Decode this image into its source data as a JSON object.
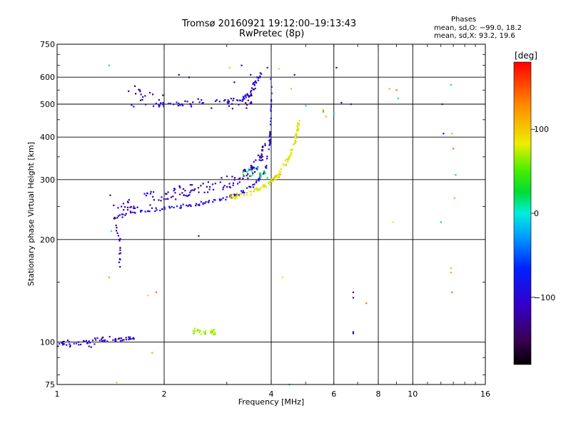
{
  "header": {
    "title": "Tromsø 20160921 19:12:00–19:13:43",
    "subtitle": "RwPretec (8p)"
  },
  "phases_box": {
    "heading": "Phases",
    "line_o": "mean, sd,O: −99.0, 18.2",
    "line_x": "mean, sd,X:  93.2, 19.6"
  },
  "chart_data": {
    "type": "scatter",
    "title": "Tromsø 20160921 19:12:00–19:13:43",
    "subtitle": "RwPretec (8p)",
    "xlabel": "Frequency [MHz]",
    "ylabel": "Stationary phase Virtual Height [km]",
    "xscale": "log",
    "yscale": "log",
    "xlim": [
      1,
      16
    ],
    "ylim": [
      75,
      750
    ],
    "x_ticks": [
      1,
      2,
      4,
      6,
      8,
      10,
      16
    ],
    "x_tick_labels": [
      "1",
      "2",
      "4",
      "6",
      "8",
      "10",
      "16"
    ],
    "x_grid": [
      2,
      4,
      6,
      8,
      10
    ],
    "y_ticks": [
      75,
      100,
      200,
      300,
      400,
      500,
      600,
      750
    ],
    "y_tick_labels": [
      "75",
      "100",
      "200",
      "300",
      "400",
      "500",
      "600",
      "750"
    ],
    "y_grid": [
      100,
      200,
      300,
      400,
      500,
      600
    ],
    "grid": true,
    "colorbar": {
      "label": "[deg]",
      "range": [
        -180,
        180
      ],
      "ticks": [
        100,
        0,
        -100
      ],
      "tick_labels": [
        "100",
        "0",
        "−100"
      ]
    },
    "series": [
      {
        "trace": [
          [
            1.0,
            96
          ],
          [
            1.03,
            99
          ],
          [
            1.06,
            100
          ],
          [
            1.1,
            97
          ],
          [
            1.15,
            99
          ],
          [
            1.2,
            101
          ],
          [
            1.25,
            98
          ],
          [
            1.3,
            103
          ],
          [
            1.35,
            101
          ],
          [
            1.4,
            102
          ]
        ],
        "jitter": [
          0.015,
          2
        ],
        "n": 45,
        "phase": -110
      },
      {
        "trace": [
          [
            1.43,
            101
          ],
          [
            1.55,
            102
          ],
          [
            1.65,
            103
          ]
        ],
        "jitter": [
          0.02,
          1
        ],
        "n": 25,
        "phase": -105
      },
      {
        "trace": [
          [
            1.45,
            232
          ],
          [
            1.6,
            240
          ],
          [
            1.8,
            244
          ],
          [
            2.0,
            246
          ],
          [
            2.3,
            252
          ],
          [
            2.6,
            256
          ],
          [
            3.0,
            265
          ],
          [
            3.3,
            275
          ],
          [
            3.6,
            290
          ],
          [
            3.85,
            320
          ],
          [
            3.95,
            380
          ],
          [
            4.0,
            450
          ],
          [
            4.0,
            600
          ]
        ],
        "jitter": [
          0.015,
          3
        ],
        "n": 130,
        "phase": -95
      },
      {
        "trace": [
          [
            1.45,
            240
          ],
          [
            1.7,
            260
          ],
          [
            2.0,
            270
          ],
          [
            2.4,
            280
          ],
          [
            2.8,
            290
          ],
          [
            3.2,
            300
          ],
          [
            3.5,
            320
          ],
          [
            3.7,
            340
          ],
          [
            3.85,
            380
          ]
        ],
        "jitter": [
          0.04,
          12
        ],
        "n": 150,
        "phase": -115
      },
      {
        "trace": [
          [
            1.6,
            500
          ],
          [
            2.0,
            498
          ],
          [
            2.5,
            505
          ],
          [
            3.0,
            512
          ],
          [
            3.3,
            520
          ],
          [
            3.5,
            535
          ],
          [
            3.6,
            580
          ],
          [
            3.8,
            620
          ]
        ],
        "jitter": [
          0.03,
          8
        ],
        "n": 80,
        "phase": -100
      },
      {
        "trace": [
          [
            1.6,
            560
          ],
          [
            1.8,
            520
          ],
          [
            3.0,
            490
          ],
          [
            3.4,
            495
          ],
          [
            3.6,
            540
          ]
        ],
        "jitter": [
          0.04,
          20
        ],
        "n": 40,
        "phase": -130
      },
      {
        "trace": [
          [
            1.45,
            230
          ],
          [
            1.5,
            200
          ],
          [
            1.5,
            170
          ]
        ],
        "jitter": [
          0.01,
          5
        ],
        "n": 18,
        "phase": -120
      },
      {
        "trace": [
          [
            3.0,
            265
          ],
          [
            3.5,
            275
          ],
          [
            3.9,
            290
          ],
          [
            4.2,
            310
          ],
          [
            4.5,
            350
          ],
          [
            4.7,
            400
          ],
          [
            4.8,
            450
          ]
        ],
        "jitter": [
          0.03,
          5
        ],
        "n": 120,
        "phase": 90
      },
      {
        "trace": [
          [
            2.4,
            108
          ],
          [
            2.6,
            106
          ],
          [
            2.8,
            107
          ]
        ],
        "jitter": [
          0.03,
          2
        ],
        "n": 35,
        "phase": 70
      },
      {
        "trace": [
          [
            3.3,
            310
          ],
          [
            3.7,
            320
          ],
          [
            3.9,
            305
          ]
        ],
        "jitter": [
          0.05,
          10
        ],
        "n": 20,
        "phase": 20
      }
    ],
    "scattered_points": [
      [
        1.4,
        650,
        10
      ],
      [
        1.41,
        270,
        -120
      ],
      [
        1.42,
        212,
        0
      ],
      [
        1.4,
        155,
        60
      ],
      [
        1.47,
        76,
        100
      ],
      [
        1.8,
        137,
        100
      ],
      [
        1.9,
        140,
        140
      ],
      [
        1.85,
        93,
        60
      ],
      [
        2.2,
        610,
        -120
      ],
      [
        2.35,
        600,
        -120
      ],
      [
        2.5,
        205,
        -100
      ],
      [
        3.05,
        640,
        100
      ],
      [
        3.15,
        580,
        -110
      ],
      [
        3.3,
        650,
        -110
      ],
      [
        3.5,
        610,
        -110
      ],
      [
        3.9,
        640,
        -100
      ],
      [
        4.2,
        635,
        100
      ],
      [
        4.3,
        155,
        90
      ],
      [
        4.55,
        555,
        110
      ],
      [
        4.5,
        75,
        10
      ],
      [
        4.65,
        610,
        -110
      ],
      [
        5.0,
        495,
        0
      ],
      [
        5.6,
        480,
        130
      ],
      [
        5.7,
        460,
        110
      ],
      [
        5.6,
        475,
        40
      ],
      [
        6.1,
        640,
        -110
      ],
      [
        6.0,
        470,
        10
      ],
      [
        6.3,
        505,
        -110
      ],
      [
        6.7,
        500,
        -100
      ],
      [
        6.8,
        140,
        -110
      ],
      [
        6.8,
        135,
        -110
      ],
      [
        6.8,
        107,
        -110
      ],
      [
        6.8,
        106,
        -110
      ],
      [
        7.4,
        130,
        140
      ],
      [
        8.6,
        555,
        110
      ],
      [
        9.0,
        550,
        140
      ],
      [
        9.1,
        520,
        10
      ],
      [
        8.8,
        225,
        90
      ],
      [
        12.0,
        225,
        20
      ],
      [
        12.1,
        500,
        -110
      ],
      [
        12.2,
        410,
        -110
      ],
      [
        12.8,
        570,
        10
      ],
      [
        12.9,
        410,
        110
      ],
      [
        12.8,
        165,
        110
      ],
      [
        12.8,
        160,
        120
      ],
      [
        12.9,
        140,
        140
      ],
      [
        13.0,
        370,
        140
      ],
      [
        13.2,
        310,
        20
      ],
      [
        13.1,
        265,
        120
      ]
    ]
  }
}
